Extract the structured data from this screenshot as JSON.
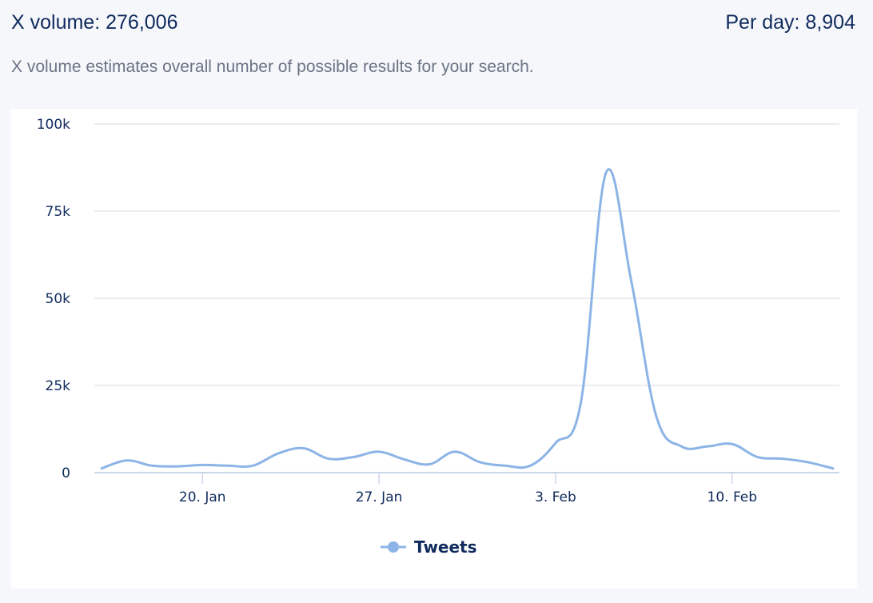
{
  "header": {
    "volume_label": "X volume: 276,006",
    "per_day_label": "Per day: 8,904",
    "description": "X volume estimates overall number of possible results for your search."
  },
  "chart_data": {
    "type": "line",
    "x": [
      "2024-01-16",
      "2024-01-17",
      "2024-01-18",
      "2024-01-19",
      "2024-01-20",
      "2024-01-21",
      "2024-01-22",
      "2024-01-23",
      "2024-01-24",
      "2024-01-25",
      "2024-01-26",
      "2024-01-27",
      "2024-01-28",
      "2024-01-29",
      "2024-01-30",
      "2024-01-31",
      "2024-02-01",
      "2024-02-02",
      "2024-02-03",
      "2024-02-04",
      "2024-02-05",
      "2024-02-06",
      "2024-02-07",
      "2024-02-08",
      "2024-02-09",
      "2024-02-10",
      "2024-02-11",
      "2024-02-12",
      "2024-02-13",
      "2024-02-14"
    ],
    "series": [
      {
        "name": "Tweets",
        "color": "#8cb4e6",
        "values": [
          1200,
          3500,
          2000,
          1800,
          2200,
          2000,
          2000,
          5500,
          7000,
          4000,
          4500,
          6000,
          3800,
          2400,
          6000,
          3000,
          2000,
          2000,
          8500,
          20000,
          86000,
          55000,
          16000,
          7500,
          7500,
          8200,
          4500,
          4000,
          3000,
          1200
        ]
      }
    ],
    "ylim": [
      0,
      100000
    ],
    "y_ticks": [
      "0",
      "25k",
      "50k",
      "75k",
      "100k"
    ],
    "x_ticks": [
      {
        "label": "20. Jan",
        "index": 4
      },
      {
        "label": "27. Jan",
        "index": 11
      },
      {
        "label": "3. Feb",
        "index": 18
      },
      {
        "label": "10. Feb",
        "index": 25
      }
    ],
    "grid": true,
    "legend": "bottom-center"
  }
}
